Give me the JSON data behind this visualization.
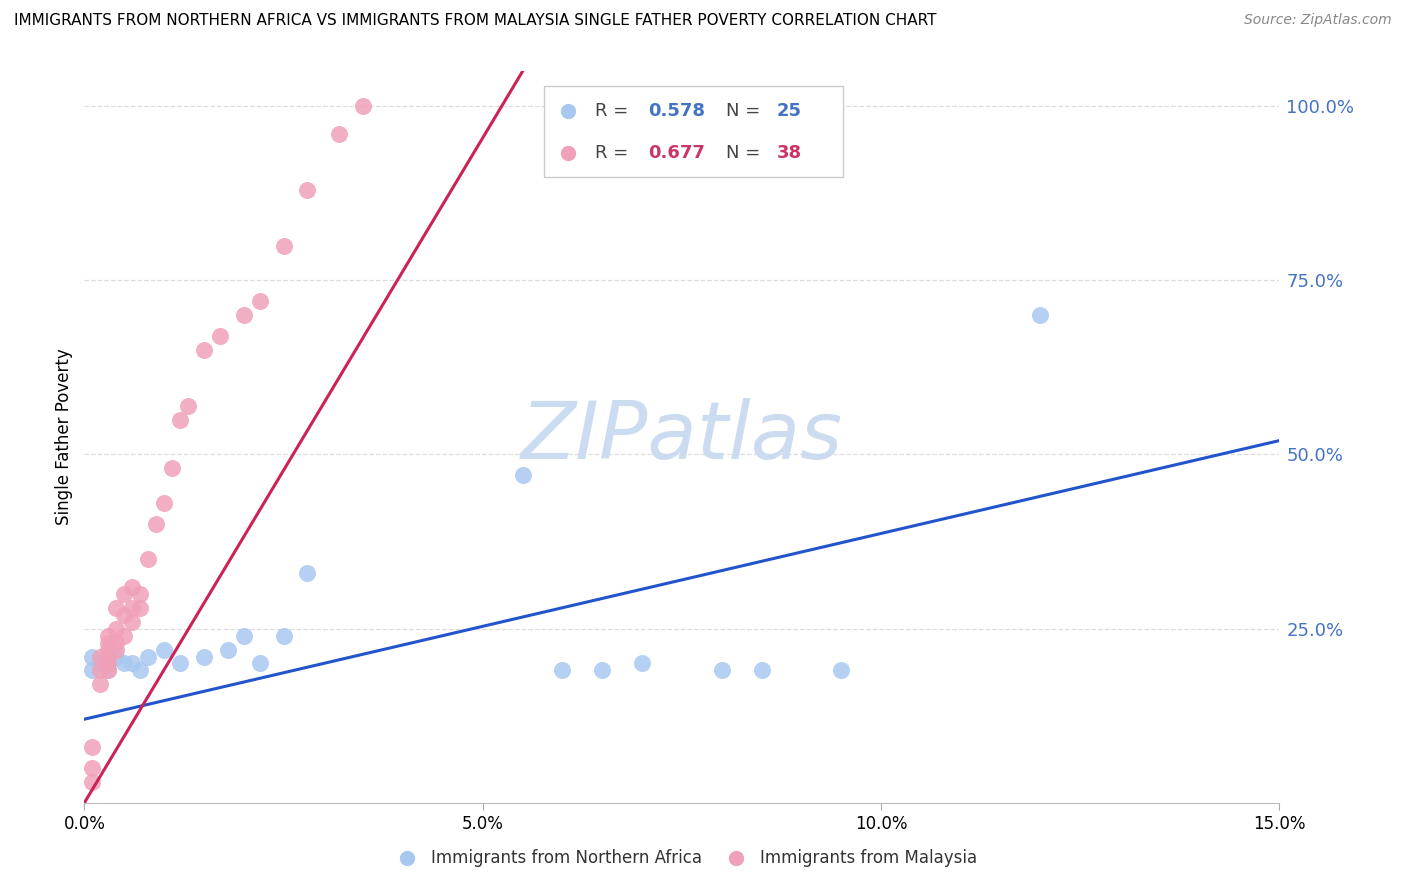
{
  "title": "IMMIGRANTS FROM NORTHERN AFRICA VS IMMIGRANTS FROM MALAYSIA SINGLE FATHER POVERTY CORRELATION CHART",
  "source": "Source: ZipAtlas.com",
  "ylabel": "Single Father Poverty",
  "xlim": [
    0,
    0.15
  ],
  "ylim": [
    0,
    1.05
  ],
  "yticks": [
    0.25,
    0.5,
    0.75,
    1.0
  ],
  "ytick_labels": [
    "25.0%",
    "50.0%",
    "75.0%",
    "100.0%"
  ],
  "xticks": [
    0.0,
    0.05,
    0.1,
    0.15
  ],
  "xtick_labels": [
    "0.0%",
    "5.0%",
    "10.0%",
    "15.0%"
  ],
  "blue_label": "Immigrants from Northern Africa",
  "pink_label": "Immigrants from Malaysia",
  "blue_R": "0.578",
  "blue_N": "25",
  "pink_R": "0.677",
  "pink_N": "38",
  "blue_scatter_color": "#a8c8f0",
  "pink_scatter_color": "#f0a0b8",
  "blue_line_color": "#2255cc",
  "pink_line_color": "#cc2255",
  "legend_blue_color": "#4472c4",
  "legend_pink_color": "#cc3366",
  "grid_color": "#dddddd",
  "right_tick_color": "#4472c4",
  "blue_line_x0": 0.0,
  "blue_line_y0": 0.12,
  "blue_line_x1": 0.15,
  "blue_line_y1": 0.52,
  "pink_line_x0": 0.0,
  "pink_line_y0": 0.0,
  "pink_line_x1": 0.055,
  "pink_line_y1": 1.05,
  "blue_scatter_x": [
    0.001,
    0.001,
    0.002,
    0.003,
    0.004,
    0.005,
    0.006,
    0.007,
    0.008,
    0.01,
    0.012,
    0.015,
    0.018,
    0.02,
    0.022,
    0.025,
    0.028,
    0.055,
    0.06,
    0.065,
    0.07,
    0.08,
    0.085,
    0.095,
    0.12
  ],
  "blue_scatter_y": [
    0.19,
    0.21,
    0.2,
    0.19,
    0.21,
    0.2,
    0.2,
    0.19,
    0.21,
    0.22,
    0.2,
    0.21,
    0.22,
    0.24,
    0.2,
    0.24,
    0.33,
    0.47,
    0.19,
    0.19,
    0.2,
    0.19,
    0.19,
    0.19,
    0.7
  ],
  "pink_scatter_x": [
    0.001,
    0.001,
    0.001,
    0.002,
    0.002,
    0.002,
    0.003,
    0.003,
    0.003,
    0.003,
    0.003,
    0.003,
    0.004,
    0.004,
    0.004,
    0.004,
    0.005,
    0.005,
    0.005,
    0.006,
    0.006,
    0.006,
    0.007,
    0.007,
    0.008,
    0.009,
    0.01,
    0.011,
    0.012,
    0.013,
    0.015,
    0.017,
    0.02,
    0.022,
    0.025,
    0.028,
    0.032,
    0.035
  ],
  "pink_scatter_y": [
    0.03,
    0.05,
    0.08,
    0.17,
    0.19,
    0.21,
    0.19,
    0.2,
    0.21,
    0.22,
    0.23,
    0.24,
    0.22,
    0.23,
    0.25,
    0.28,
    0.24,
    0.27,
    0.3,
    0.26,
    0.28,
    0.31,
    0.28,
    0.3,
    0.35,
    0.4,
    0.43,
    0.48,
    0.55,
    0.57,
    0.65,
    0.67,
    0.7,
    0.72,
    0.8,
    0.88,
    0.96,
    1.0
  ],
  "watermark_text": "ZIPatlas",
  "watermark_color": "#ccdcf0"
}
